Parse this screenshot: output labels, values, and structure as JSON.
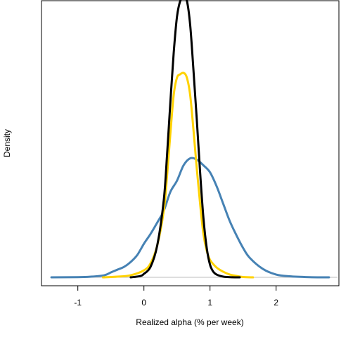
{
  "chart_data": {
    "type": "line",
    "title": "",
    "xlabel": "Realized alpha (% per week)",
    "ylabel": "Density",
    "xlim": [
      -1.55,
      2.95
    ],
    "ylim": [
      -0.12,
      3.95
    ],
    "x_ticks": [
      -1,
      0,
      1,
      2
    ],
    "x_tick_labels": [
      "-1",
      "0",
      "1",
      "2"
    ],
    "y_ticks_shown": false,
    "baseline": 0,
    "grid": false,
    "legend": "none",
    "series": [
      {
        "color": "#4682b4",
        "x": [
          -1.4,
          -1.0,
          -0.8,
          -0.6,
          -0.5,
          -0.4,
          -0.3,
          -0.2,
          -0.1,
          0.0,
          0.1,
          0.2,
          0.3,
          0.4,
          0.5,
          0.6,
          0.7,
          0.8,
          0.9,
          1.0,
          1.1,
          1.2,
          1.3,
          1.4,
          1.5,
          1.6,
          1.8,
          2.0,
          2.2,
          2.5,
          2.8
        ],
        "y": [
          0.0,
          0.003,
          0.01,
          0.03,
          0.07,
          0.11,
          0.15,
          0.22,
          0.32,
          0.48,
          0.62,
          0.78,
          0.95,
          1.22,
          1.38,
          1.6,
          1.7,
          1.68,
          1.6,
          1.5,
          1.3,
          1.05,
          0.8,
          0.6,
          0.42,
          0.28,
          0.12,
          0.04,
          0.015,
          0.003,
          0.0
        ]
      },
      {
        "color": "#ffd200",
        "x": [
          -0.62,
          -0.4,
          -0.2,
          0.0,
          0.1,
          0.2,
          0.3,
          0.35,
          0.4,
          0.45,
          0.5,
          0.55,
          0.6,
          0.65,
          0.7,
          0.75,
          0.8,
          0.85,
          0.9,
          0.95,
          1.0,
          1.1,
          1.2,
          1.3,
          1.4,
          1.5,
          1.65
        ],
        "y": [
          0.0,
          0.01,
          0.03,
          0.1,
          0.2,
          0.45,
          0.95,
          1.45,
          2.05,
          2.6,
          2.85,
          2.9,
          2.92,
          2.85,
          2.6,
          2.1,
          1.55,
          1.05,
          0.62,
          0.38,
          0.25,
          0.14,
          0.08,
          0.04,
          0.02,
          0.005,
          0.0
        ]
      },
      {
        "color": "#000000",
        "x": [
          -0.2,
          -0.05,
          0.0,
          0.1,
          0.2,
          0.3,
          0.35,
          0.4,
          0.45,
          0.5,
          0.55,
          0.6,
          0.65,
          0.7,
          0.75,
          0.8,
          0.85,
          0.9,
          0.95,
          1.0,
          1.05,
          1.1,
          1.2,
          1.3,
          1.45
        ],
        "y": [
          0.0,
          0.02,
          0.05,
          0.15,
          0.45,
          1.1,
          1.75,
          2.5,
          3.2,
          3.72,
          3.95,
          4.02,
          3.95,
          3.6,
          2.95,
          2.25,
          1.5,
          0.85,
          0.42,
          0.18,
          0.08,
          0.04,
          0.01,
          0.003,
          0.0
        ]
      }
    ]
  }
}
